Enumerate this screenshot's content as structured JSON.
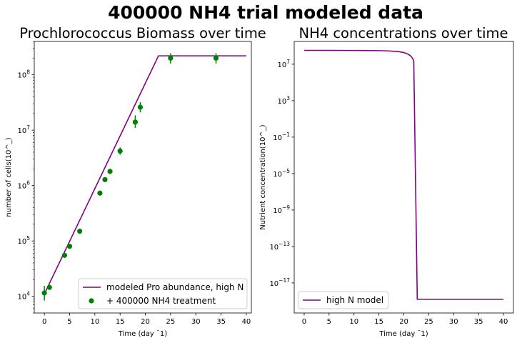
{
  "figure": {
    "title": "400000 NH4 trial modeled data"
  },
  "chart_data": [
    {
      "type": "line",
      "title": "Prochlorococcus Biomass over time",
      "xlabel": "Time (day $^{-1}$)",
      "xlabel_display": "Time (day ¯1)",
      "ylabel": "number of cells(10^_)",
      "xlim": [
        -2,
        41
      ],
      "ylim": [
        5000,
        400000000
      ],
      "yscale": "log",
      "x_ticks": [
        0,
        5,
        10,
        15,
        20,
        25,
        30,
        35,
        40
      ],
      "y_ticks": [
        {
          "value": 10000,
          "base": "10",
          "exp": "4"
        },
        {
          "value": 100000,
          "base": "10",
          "exp": "5"
        },
        {
          "value": 1000000,
          "base": "10",
          "exp": "6"
        },
        {
          "value": 10000000,
          "base": "10",
          "exp": "7"
        },
        {
          "value": 100000000,
          "base": "10",
          "exp": "8"
        }
      ],
      "series": [
        {
          "name": "modeled Pro abundance, high N",
          "kind": "line",
          "color": "#800080",
          "x": [
            0,
            22.6,
            40
          ],
          "y": [
            11000,
            220000000,
            220000000
          ]
        },
        {
          "name": "+ 400000 NH4 treatment",
          "kind": "errorbar",
          "color": "#008000",
          "x": [
            0,
            1,
            4,
            5,
            7,
            11,
            12,
            13,
            15,
            18,
            19,
            25,
            34
          ],
          "y": [
            11500,
            14500,
            55000,
            80000,
            150000,
            730000,
            1280000,
            1800000,
            4200000,
            14000000,
            26000000,
            200000000,
            200000000
          ],
          "yerr_low": [
            8400,
            13500,
            52000,
            76000,
            145000,
            660000,
            1180000,
            1620000,
            3600000,
            11000000,
            21000000,
            160000000,
            160000000
          ],
          "yerr_high": [
            15500,
            15800,
            58000,
            84000,
            158000,
            800000,
            1400000,
            2000000,
            4900000,
            18500000,
            32000000,
            245000000,
            245000000
          ]
        }
      ],
      "legend": {
        "placement": "lower right",
        "entries": [
          "modeled Pro abundance, high N",
          " + 400000 NH4 treatment"
        ]
      }
    },
    {
      "type": "line",
      "title": "NH4 concentrations over time",
      "xlabel": "Time (day $^{-1}$)",
      "xlabel_display": "Time (day ¯1)",
      "ylabel": "Nutrient concentration(10^_)",
      "xlim": [
        -2,
        42
      ],
      "log_ylim": [
        -20.3,
        9.5
      ],
      "yscale": "log",
      "x_ticks": [
        0,
        5,
        10,
        15,
        20,
        25,
        30,
        35,
        40
      ],
      "y_ticks": [
        {
          "log": 7,
          "base": "10",
          "exp": "7"
        },
        {
          "log": 3,
          "base": "10",
          "exp": "3"
        },
        {
          "log": -1,
          "base": "10",
          "exp": "−1"
        },
        {
          "log": -5,
          "base": "10",
          "exp": "−5"
        },
        {
          "log": -9,
          "base": "10",
          "exp": "−9"
        },
        {
          "log": -13,
          "base": "10",
          "exp": "−13"
        },
        {
          "log": -17,
          "base": "10",
          "exp": "−17"
        }
      ],
      "series": [
        {
          "name": "high N model",
          "kind": "line",
          "color": "#800080",
          "x": [
            0,
            5,
            10,
            15,
            17,
            19,
            20,
            20.8,
            21.4,
            21.8,
            22.0,
            22.7,
            30,
            40
          ],
          "log_y": [
            8.52,
            8.52,
            8.51,
            8.49,
            8.46,
            8.38,
            8.28,
            8.12,
            7.9,
            7.6,
            7.35,
            -18.8,
            -18.8,
            -18.8
          ]
        }
      ],
      "legend": {
        "placement": "lower left",
        "entries": [
          "high N model"
        ]
      }
    }
  ]
}
